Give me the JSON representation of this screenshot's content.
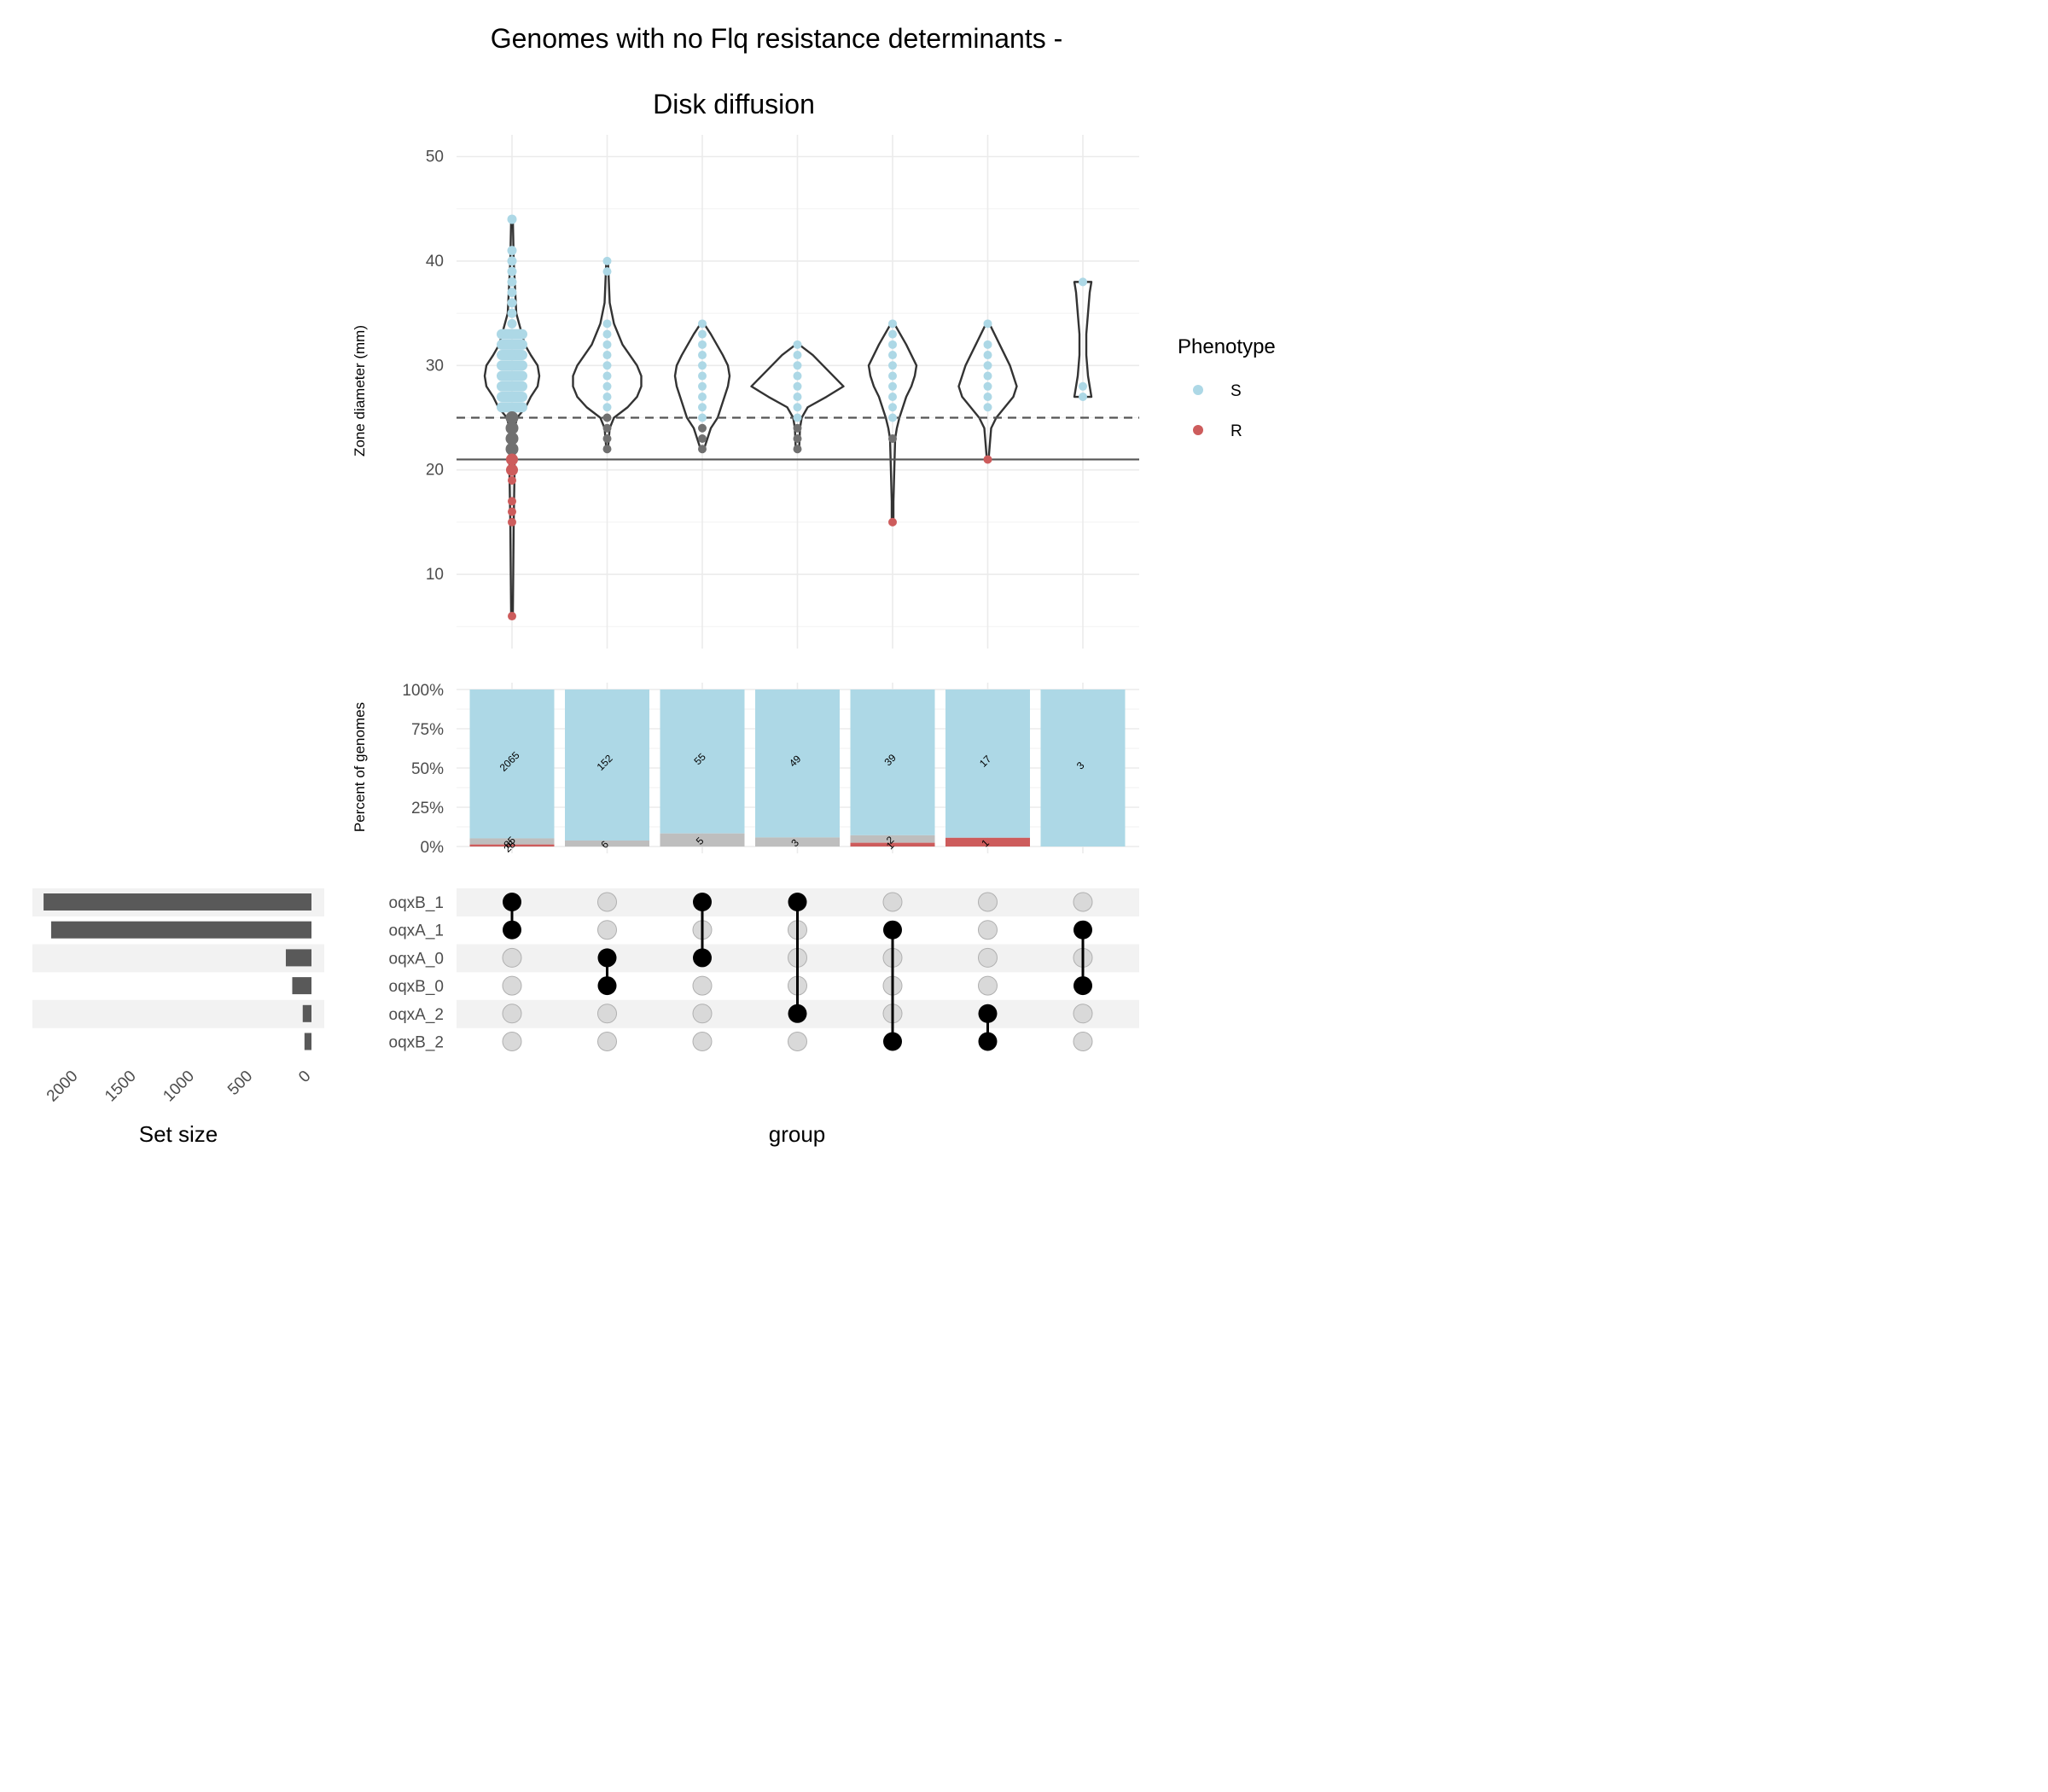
{
  "chart_data": {
    "type": "upset",
    "title_lines": [
      "Genomes with no Flq resistance determinants -",
      "Disk diffusion"
    ],
    "colors": {
      "S": "#ADD8E6",
      "R": "#CD5C5C",
      "I": "#BEBEBE",
      "intermediate_points": "#707070",
      "bar": "#595959",
      "dot_on": "#000000",
      "dot_off": "#D9D9D9"
    },
    "violin": {
      "ylabel": "Zone diameter (mm)",
      "ylim": [
        4.5,
        52
      ],
      "yticks": [
        10,
        20,
        30,
        40,
        50
      ],
      "breakpoints": {
        "S_dashed": 25,
        "R_solid": 21
      },
      "legend_title": "Phenotype",
      "legend": [
        "S",
        "R"
      ],
      "groups": [
        {
          "S": [
            26,
            27,
            28,
            29,
            30,
            31,
            32,
            33,
            34,
            35,
            36,
            37,
            38,
            39,
            40,
            41,
            44
          ],
          "I": [
            22,
            23,
            24,
            25
          ],
          "R": [
            6,
            15,
            16,
            17,
            19,
            20,
            21
          ]
        },
        {
          "S": [
            26,
            27,
            28,
            29,
            30,
            31,
            32,
            33,
            34,
            39,
            40
          ],
          "I": [
            22,
            23,
            24,
            25
          ],
          "R": []
        },
        {
          "S": [
            25,
            26,
            27,
            28,
            29,
            30,
            31,
            32,
            33,
            34
          ],
          "I": [
            22,
            23,
            24
          ],
          "R": []
        },
        {
          "S": [
            25,
            26,
            27,
            28,
            29,
            30,
            31,
            32
          ],
          "I": [
            22,
            23,
            24
          ],
          "R": []
        },
        {
          "S": [
            25,
            26,
            27,
            28,
            29,
            30,
            31,
            32,
            33,
            34
          ],
          "I": [
            23
          ],
          "R": [
            15
          ]
        },
        {
          "S": [
            26,
            27,
            28,
            29,
            30,
            31,
            32,
            34
          ],
          "I": [],
          "R": [
            21
          ]
        },
        {
          "S": [
            27,
            28,
            38
          ],
          "I": [],
          "R": []
        }
      ],
      "violin_shapes": [
        {
          "ymin": 6,
          "ymax": 44,
          "median": 29
        },
        {
          "ymin": 22,
          "ymax": 40,
          "median": 28
        },
        {
          "ymin": 22,
          "ymax": 34,
          "median": 29
        },
        {
          "ymin": 22,
          "ymax": 32,
          "median": 28
        },
        {
          "ymin": 15,
          "ymax": 34,
          "median": 29
        },
        {
          "ymin": 21,
          "ymax": 34,
          "median": 28
        },
        {
          "ymin": 27,
          "ymax": 38,
          "median": 33
        }
      ]
    },
    "bars": {
      "ylabel": "Percent of genomes",
      "yticks": [
        "0%",
        "25%",
        "50%",
        "75%",
        "100%"
      ],
      "groups": [
        {
          "S": 2065,
          "I": 85,
          "R": 28
        },
        {
          "S": 152,
          "I": 6,
          "R": 0
        },
        {
          "S": 55,
          "I": 5,
          "R": 0
        },
        {
          "S": 49,
          "I": 3,
          "R": 0
        },
        {
          "S": 39,
          "I": 2,
          "R": 1
        },
        {
          "S": 17,
          "I": 0,
          "R": 1
        },
        {
          "S": 3,
          "I": 0,
          "R": 0
        }
      ]
    },
    "matrix": {
      "sets": [
        "oqxB_1",
        "oqxA_1",
        "oqxA_0",
        "oqxB_0",
        "oqxA_2",
        "oqxB_2"
      ],
      "intersections": [
        [
          "oqxB_1",
          "oqxA_1"
        ],
        [
          "oqxA_0",
          "oqxB_0"
        ],
        [
          "oqxB_1",
          "oqxA_0"
        ],
        [
          "oqxB_1",
          "oqxA_2"
        ],
        [
          "oqxA_1",
          "oqxB_2"
        ],
        [
          "oqxA_2",
          "oqxB_2"
        ],
        [
          "oqxA_1",
          "oqxB_0"
        ]
      ],
      "xlabel": "group"
    },
    "set_size": {
      "xlabel": "Set size",
      "ticks": [
        2000,
        1500,
        1000,
        500,
        0
      ],
      "values": [
        2300,
        2235,
        220,
        165,
        75,
        60
      ]
    }
  }
}
